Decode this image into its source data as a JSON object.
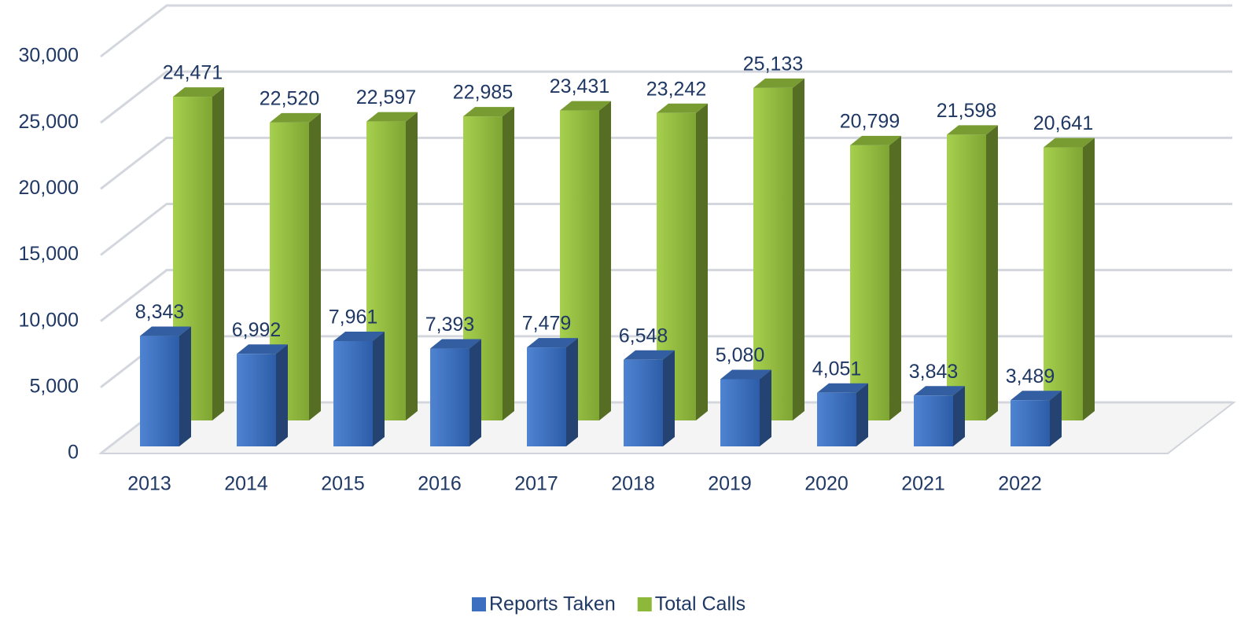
{
  "chart_data": {
    "type": "bar3d",
    "categories": [
      "2013",
      "2014",
      "2015",
      "2016",
      "2017",
      "2018",
      "2019",
      "2020",
      "2021",
      "2022"
    ],
    "series": [
      {
        "name": "Reports Taken",
        "color": "#3c6fbf",
        "values": [
          8343,
          6992,
          7961,
          7393,
          7479,
          6548,
          5080,
          4051,
          3843,
          3489
        ],
        "value_labels": [
          "8,343",
          "6,992",
          "7,961",
          "7,393",
          "7,479",
          "6,548",
          "5,080",
          "4,051",
          "3,843",
          "3,489"
        ]
      },
      {
        "name": "Total Calls",
        "color": "#8db83a",
        "values": [
          24471,
          22520,
          22597,
          22985,
          23431,
          23242,
          25133,
          20799,
          21598,
          20641
        ],
        "value_labels": [
          "24,471",
          "22,520",
          "22,597",
          "22,985",
          "23,431",
          "23,242",
          "25,133",
          "20,799",
          "21,598",
          "20,641"
        ]
      }
    ],
    "ylim": [
      0,
      30000
    ],
    "yticks": [
      0,
      {
        "value": 5000,
        "label": "5,000"
      },
      {
        "value": 10000,
        "label": "10,000"
      },
      {
        "value": 15000,
        "label": "15,000"
      },
      {
        "value": 20000,
        "label": "20,000"
      },
      {
        "value": 25000,
        "label": "25,000"
      },
      {
        "value": 30000,
        "label": "30,000"
      }
    ],
    "grid": true,
    "legend": "bottom"
  }
}
